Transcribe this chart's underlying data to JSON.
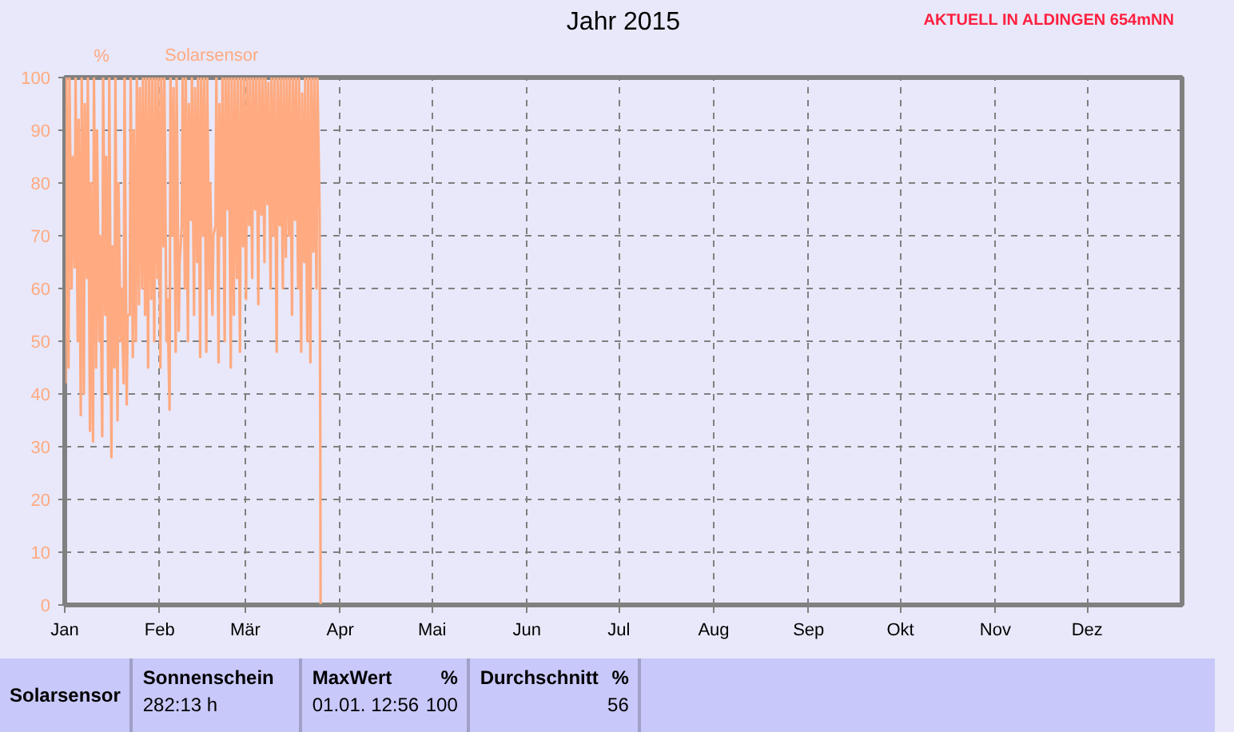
{
  "chart_data": {
    "type": "line",
    "title": "Jahr 2015",
    "ylabel": "%",
    "annotations": [
      "AKTUELL IN ALDINGEN 654mNN",
      "Solarsensor",
      "Sonnenschein",
      "282:13 h",
      "MaxWert",
      "%",
      "01.01.  12:56",
      "100",
      "Durchschnitt",
      "%",
      "56"
    ],
    "xlim": [
      "2015-01-01",
      "2016-01-01"
    ],
    "xticks": [
      {
        "value": "2015-01-01",
        "label": "Jan"
      },
      {
        "value": "2015-02-01",
        "label": "Feb"
      },
      {
        "value": "2015-03-01",
        "label": "Mär"
      },
      {
        "value": "2015-04-01",
        "label": "Apr"
      },
      {
        "value": "2015-05-01",
        "label": "Mai"
      },
      {
        "value": "2015-06-01",
        "label": "Jun"
      },
      {
        "value": "2015-07-01",
        "label": "Jul"
      },
      {
        "value": "2015-08-01",
        "label": "Aug"
      },
      {
        "value": "2015-09-01",
        "label": "Sep"
      },
      {
        "value": "2015-10-01",
        "label": "Okt"
      },
      {
        "value": "2015-11-01",
        "label": "Nov"
      },
      {
        "value": "2015-12-01",
        "label": "Dez"
      }
    ],
    "ylim": [
      0,
      100
    ],
    "yticks": [
      0,
      10,
      20,
      30,
      40,
      50,
      60,
      70,
      80,
      90,
      100
    ],
    "grid": true,
    "legend": "top left",
    "marker": "none",
    "line_style": "solid",
    "series": [
      {
        "name": "Solarsensor",
        "color": "#ffaa80",
        "x": [
          "2015-01-01T06:00",
          "2015-01-01T13:00",
          "2015-01-02T06:00",
          "2015-01-02T13:00",
          "2015-01-03T06:00",
          "2015-01-03T13:00",
          "2015-01-04T06:00",
          "2015-01-04T13:00",
          "2015-01-05T06:00",
          "2015-01-05T13:00",
          "2015-01-06T06:00",
          "2015-01-06T13:00",
          "2015-01-07T06:00",
          "2015-01-07T13:00",
          "2015-01-08T06:00",
          "2015-01-08T13:00",
          "2015-01-09T06:00",
          "2015-01-09T13:00",
          "2015-01-10T06:00",
          "2015-01-10T13:00",
          "2015-01-11T06:00",
          "2015-01-11T13:00",
          "2015-01-12T06:00",
          "2015-01-12T13:00",
          "2015-01-13T06:00",
          "2015-01-13T13:00",
          "2015-01-14T06:00",
          "2015-01-14T13:00",
          "2015-01-15T06:00",
          "2015-01-15T13:00",
          "2015-01-16T06:00",
          "2015-01-16T13:00",
          "2015-01-17T06:00",
          "2015-01-17T13:00",
          "2015-01-18T06:00",
          "2015-01-18T13:00",
          "2015-01-19T06:00",
          "2015-01-19T13:00",
          "2015-01-20T06:00",
          "2015-01-20T13:00",
          "2015-01-21T06:00",
          "2015-01-21T13:00",
          "2015-01-22T06:00",
          "2015-01-22T13:00",
          "2015-01-23T06:00",
          "2015-01-23T13:00",
          "2015-01-24T06:00",
          "2015-01-24T13:00",
          "2015-01-25T06:00",
          "2015-01-25T13:00",
          "2015-01-26T06:00",
          "2015-01-26T13:00",
          "2015-01-27T06:00",
          "2015-01-27T13:00",
          "2015-01-28T06:00",
          "2015-01-28T13:00",
          "2015-01-29T06:00",
          "2015-01-29T13:00",
          "2015-01-30T06:00",
          "2015-01-30T13:00",
          "2015-01-31T06:00",
          "2015-01-31T13:00",
          "2015-02-01T06:00",
          "2015-02-01T13:00",
          "2015-02-02T06:00",
          "2015-02-02T13:00",
          "2015-02-03T06:00",
          "2015-02-03T13:00",
          "2015-02-04T06:00",
          "2015-02-04T13:00",
          "2015-02-05T06:00",
          "2015-02-05T13:00",
          "2015-02-06T06:00",
          "2015-02-06T13:00",
          "2015-02-07T06:00",
          "2015-02-07T13:00",
          "2015-02-08T06:00",
          "2015-02-08T13:00",
          "2015-02-09T06:00",
          "2015-02-09T13:00",
          "2015-02-10T06:00",
          "2015-02-10T13:00",
          "2015-02-11T06:00",
          "2015-02-11T13:00",
          "2015-02-12T06:00",
          "2015-02-12T13:00",
          "2015-02-13T06:00",
          "2015-02-13T13:00",
          "2015-02-14T06:00",
          "2015-02-14T13:00",
          "2015-02-15T06:00",
          "2015-02-15T13:00",
          "2015-02-16T06:00",
          "2015-02-16T13:00",
          "2015-02-17T06:00",
          "2015-02-17T13:00",
          "2015-02-18T06:00",
          "2015-02-18T13:00",
          "2015-02-19T06:00",
          "2015-02-19T13:00",
          "2015-02-20T06:00",
          "2015-02-20T13:00",
          "2015-02-21T06:00",
          "2015-02-21T13:00",
          "2015-02-22T06:00",
          "2015-02-22T13:00",
          "2015-02-23T06:00",
          "2015-02-23T13:00",
          "2015-02-24T06:00",
          "2015-02-24T13:00",
          "2015-02-25T06:00",
          "2015-02-25T13:00",
          "2015-02-26T06:00",
          "2015-02-26T13:00",
          "2015-02-27T06:00",
          "2015-02-27T13:00",
          "2015-02-28T06:00",
          "2015-02-28T13:00",
          "2015-03-01T06:00",
          "2015-03-01T13:00",
          "2015-03-02T06:00",
          "2015-03-02T13:00",
          "2015-03-03T06:00",
          "2015-03-03T13:00",
          "2015-03-04T06:00",
          "2015-03-04T13:00",
          "2015-03-05T06:00",
          "2015-03-05T13:00",
          "2015-03-06T06:00",
          "2015-03-06T13:00",
          "2015-03-07T06:00",
          "2015-03-07T13:00",
          "2015-03-08T06:00",
          "2015-03-08T13:00",
          "2015-03-09T06:00",
          "2015-03-09T13:00",
          "2015-03-10T06:00",
          "2015-03-10T13:00",
          "2015-03-11T06:00",
          "2015-03-11T13:00",
          "2015-03-12T06:00",
          "2015-03-12T13:00",
          "2015-03-13T06:00",
          "2015-03-13T13:00",
          "2015-03-14T06:00",
          "2015-03-14T13:00",
          "2015-03-15T06:00",
          "2015-03-15T13:00",
          "2015-03-16T06:00",
          "2015-03-16T13:00",
          "2015-03-17T06:00",
          "2015-03-17T13:00",
          "2015-03-18T06:00",
          "2015-03-18T13:00",
          "2015-03-19T06:00",
          "2015-03-19T13:00",
          "2015-03-20T06:00",
          "2015-03-20T13:00",
          "2015-03-21T06:00",
          "2015-03-21T13:00",
          "2015-03-22T06:00",
          "2015-03-22T13:00",
          "2015-03-23T06:00",
          "2015-03-23T13:00",
          "2015-03-24T06:00",
          "2015-03-24T13:00",
          "2015-03-25T06:00",
          "2015-03-25T12:00",
          "2015-03-25T14:00"
        ],
        "values": [
          42,
          100,
          45,
          100,
          60,
          85,
          64,
          100,
          50,
          92,
          36,
          100,
          40,
          95,
          62,
          100,
          33,
          80,
          31,
          100,
          45,
          90,
          50,
          70,
          32,
          100,
          55,
          85,
          40,
          100,
          28,
          68,
          45,
          100,
          35,
          80,
          50,
          60,
          42,
          100,
          38,
          55,
          55,
          100,
          47,
          90,
          50,
          100,
          57,
          98,
          60,
          100,
          55,
          100,
          45,
          100,
          58,
          100,
          50,
          100,
          62,
          100,
          45,
          100,
          68,
          100,
          50,
          58,
          37,
          100,
          70,
          98,
          48,
          100,
          52,
          65,
          72,
          100,
          60,
          100,
          50,
          95,
          73,
          100,
          55,
          98,
          65,
          100,
          47,
          100,
          70,
          100,
          48,
          100,
          60,
          80,
          55,
          70,
          72,
          100,
          46,
          95,
          70,
          100,
          50,
          100,
          75,
          100,
          45,
          100,
          55,
          100,
          62,
          100,
          48,
          100,
          68,
          100,
          58,
          100,
          72,
          100,
          62,
          100,
          75,
          100,
          57,
          100,
          74,
          100,
          65,
          100,
          76,
          99,
          60,
          100,
          70,
          100,
          48,
          100,
          72,
          100,
          60,
          100,
          66,
          100,
          70,
          100,
          55,
          100,
          73,
          100,
          60,
          100,
          48,
          97,
          65,
          100,
          50,
          100,
          46,
          100,
          67,
          100,
          60,
          100,
          75,
          30,
          0
        ]
      }
    ]
  }
}
